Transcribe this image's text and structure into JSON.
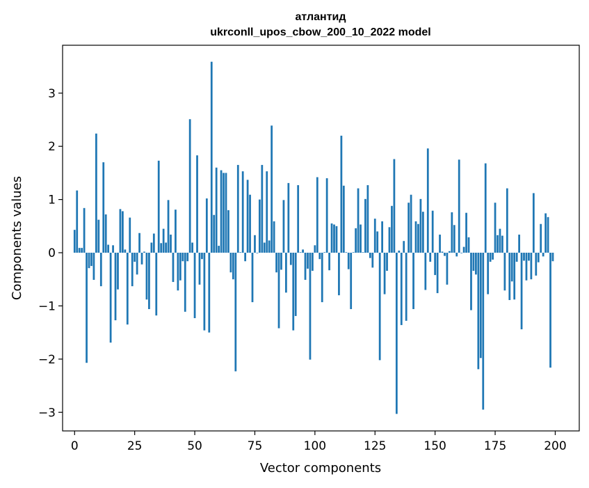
{
  "chart_data": {
    "type": "bar",
    "title": "атлантид",
    "subtitle": "ukrconll_upos_cbow_200_10_2022 model",
    "xlabel": "Vector components",
    "ylabel": "Components values",
    "xlim": [
      -5,
      210
    ],
    "ylim": [
      -3.35,
      3.9
    ],
    "xticks": [
      0,
      25,
      50,
      75,
      100,
      125,
      150,
      175,
      200
    ],
    "yticks": [
      -3,
      -2,
      -1,
      0,
      1,
      2,
      3
    ],
    "bar_color": "#1f77b4",
    "grid": false,
    "legend": "none",
    "x": [
      0,
      1,
      2,
      3,
      4,
      5,
      6,
      7,
      8,
      9,
      10,
      11,
      12,
      13,
      14,
      15,
      16,
      17,
      18,
      19,
      20,
      21,
      22,
      23,
      24,
      25,
      26,
      27,
      28,
      29,
      30,
      31,
      32,
      33,
      34,
      35,
      36,
      37,
      38,
      39,
      40,
      41,
      42,
      43,
      44,
      45,
      46,
      47,
      48,
      49,
      50,
      51,
      52,
      53,
      54,
      55,
      56,
      57,
      58,
      59,
      60,
      61,
      62,
      63,
      64,
      65,
      66,
      67,
      68,
      69,
      70,
      71,
      72,
      73,
      74,
      75,
      76,
      77,
      78,
      79,
      80,
      81,
      82,
      83,
      84,
      85,
      86,
      87,
      88,
      89,
      90,
      91,
      92,
      93,
      94,
      95,
      96,
      97,
      98,
      99,
      100,
      101,
      102,
      103,
      104,
      105,
      106,
      107,
      108,
      109,
      110,
      111,
      112,
      113,
      114,
      115,
      116,
      117,
      118,
      119,
      120,
      121,
      122,
      123,
      124,
      125,
      126,
      127,
      128,
      129,
      130,
      131,
      132,
      133,
      134,
      135,
      136,
      137,
      138,
      139,
      140,
      141,
      142,
      143,
      144,
      145,
      146,
      147,
      148,
      149,
      150,
      151,
      152,
      153,
      154,
      155,
      156,
      157,
      158,
      159,
      160,
      161,
      162,
      163,
      164,
      165,
      166,
      167,
      168,
      169,
      170,
      171,
      172,
      173,
      174,
      175,
      176,
      177,
      178,
      179,
      180,
      181,
      182,
      183,
      184,
      185,
      186,
      187,
      188,
      189,
      190,
      191,
      192,
      193,
      194,
      195,
      196,
      197,
      198,
      199
    ],
    "values": [
      0.43,
      1.17,
      0.09,
      0.09,
      0.84,
      -2.07,
      -0.29,
      -0.25,
      -0.51,
      2.24,
      0.62,
      -0.63,
      1.7,
      0.72,
      0.15,
      -1.69,
      0.14,
      -1.27,
      -0.69,
      0.82,
      0.78,
      0.06,
      -1.35,
      0.66,
      -0.63,
      -0.17,
      -0.41,
      0.37,
      -0.22,
      0.02,
      -0.88,
      -1.06,
      0.19,
      0.36,
      -1.18,
      1.73,
      0.18,
      0.45,
      0.19,
      0.99,
      0.34,
      -0.55,
      0.81,
      -0.71,
      -0.52,
      -0.16,
      -1.11,
      -0.16,
      2.51,
      0.19,
      -1.23,
      1.83,
      -0.6,
      -0.12,
      -1.46,
      1.02,
      -1.5,
      3.59,
      0.71,
      1.6,
      0.13,
      1.55,
      1.5,
      1.5,
      0.8,
      -0.37,
      -0.5,
      -2.23,
      1.65,
      0.01,
      1.53,
      -0.16,
      1.37,
      1.09,
      -0.93,
      0.33,
      -0.01,
      1.0,
      1.65,
      0.19,
      1.53,
      0.23,
      2.39,
      0.59,
      -0.37,
      -1.42,
      -0.32,
      0.99,
      -0.75,
      1.31,
      -0.23,
      -1.46,
      -1.19,
      1.27,
      0.01,
      0.06,
      -0.51,
      -0.3,
      -2.01,
      -0.34,
      0.14,
      1.42,
      -0.12,
      -0.93,
      0.01,
      1.4,
      -0.33,
      0.55,
      0.53,
      0.5,
      -0.8,
      2.2,
      1.26,
      0.01,
      -0.31,
      -1.06,
      0.01,
      0.46,
      1.21,
      0.53,
      0.01,
      1.01,
      1.27,
      -0.1,
      -0.28,
      0.64,
      0.4,
      -2.02,
      0.59,
      -0.78,
      -0.34,
      0.48,
      0.88,
      1.76,
      -3.03,
      0.04,
      -1.36,
      0.22,
      -1.28,
      0.94,
      1.09,
      -1.06,
      0.59,
      0.54,
      1.01,
      0.77,
      -0.7,
      1.96,
      -0.17,
      0.79,
      -0.42,
      -0.76,
      0.34,
      0.02,
      -0.06,
      -0.6,
      0.03,
      0.76,
      0.52,
      -0.07,
      1.75,
      -0.01,
      0.11,
      0.75,
      0.29,
      -1.08,
      -0.34,
      -0.41,
      -2.19,
      -1.98,
      -2.95,
      1.68,
      -0.78,
      -0.17,
      -0.13,
      0.94,
      0.33,
      0.45,
      0.32,
      -0.71,
      1.21,
      -0.89,
      -0.54,
      -0.88,
      -0.17,
      0.34,
      -1.44,
      -0.15,
      -0.52,
      -0.15,
      -0.5,
      1.12,
      -0.43,
      -0.18,
      0.54,
      -0.07,
      0.74,
      0.67,
      -2.16,
      -0.16
    ]
  }
}
